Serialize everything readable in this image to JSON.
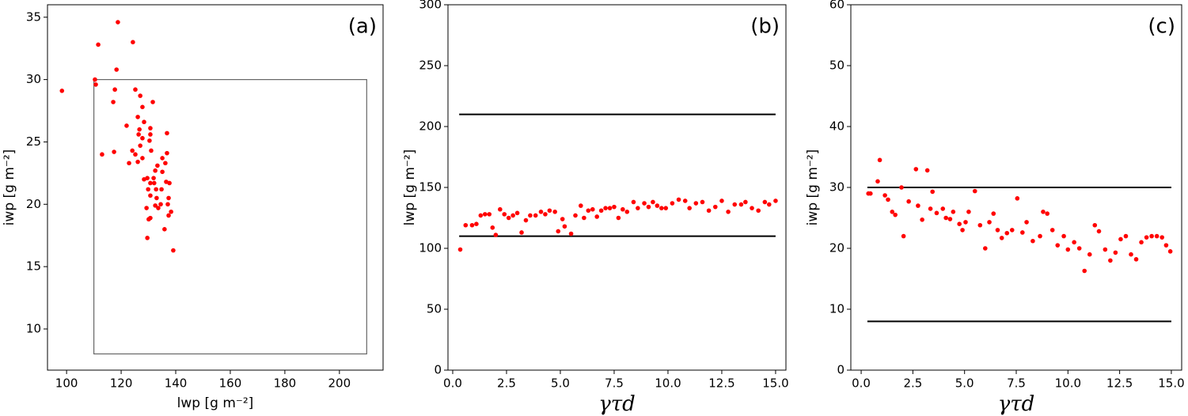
{
  "chart_data": [
    {
      "type": "scatter",
      "panel_label": "(a)",
      "xlabel": "lwp [g m⁻²]",
      "ylabel": "iwp [g m⁻²]",
      "xlim": [
        93,
        216
      ],
      "ylim": [
        6.7,
        36
      ],
      "xticks": [
        100,
        120,
        140,
        160,
        180,
        200
      ],
      "yticks": [
        10,
        15,
        20,
        25,
        30,
        35
      ],
      "color": "red",
      "x": [
        98.3,
        110.4,
        110.7,
        111.6,
        118.8,
        124.3,
        118.3,
        117.7,
        117.1,
        117.4,
        113.0,
        122.0,
        125.2,
        127.0,
        131.6,
        127.8,
        126.1,
        128.4,
        130.7,
        126.7,
        126.4,
        127.8,
        130.7,
        130.4,
        127.0,
        124.1,
        125.2,
        122.9,
        126.1,
        127.8,
        131.0,
        136.8,
        136.8,
        135.1,
        136.2,
        133.3,
        132.5,
        131.9,
        129.6,
        128.4,
        130.7,
        132.1,
        135.1,
        136.5,
        137.7,
        129.9,
        132.8,
        134.8,
        130.7,
        133.0,
        137.4,
        137.1,
        134.5,
        132.5,
        129.3,
        133.6,
        138.3,
        137.4,
        130.7,
        130.1,
        135.9,
        129.6,
        139.1
      ],
      "values": [
        29.1,
        30.0,
        29.6,
        32.8,
        34.6,
        33.0,
        30.8,
        29.2,
        28.2,
        24.2,
        24.0,
        26.3,
        29.2,
        28.7,
        28.2,
        27.8,
        27.0,
        26.6,
        26.1,
        26.0,
        25.6,
        25.3,
        25.6,
        25.1,
        24.7,
        24.3,
        24.0,
        23.3,
        23.4,
        23.7,
        24.3,
        25.7,
        24.1,
        23.7,
        23.3,
        23.1,
        22.7,
        22.1,
        22.1,
        22.0,
        21.7,
        21.7,
        22.6,
        21.8,
        21.7,
        21.2,
        21.2,
        21.2,
        20.7,
        20.5,
        20.5,
        20.0,
        20.0,
        19.9,
        19.7,
        19.7,
        19.4,
        19.1,
        18.9,
        18.8,
        18.0,
        17.3,
        16.3
      ],
      "box": {
        "x": [
          110,
          210
        ],
        "y": [
          8,
          30
        ],
        "color": "#666666"
      }
    },
    {
      "type": "scatter",
      "panel_label": "(b)",
      "xlabel": "γτd",
      "ylabel": "lwp [g m⁻²]",
      "xlim": [
        -0.22,
        15.48
      ],
      "ylim": [
        0,
        300
      ],
      "xticks": [
        {
          "value": 0,
          "label": "0.0"
        },
        {
          "value": 2.5,
          "label": "2.5"
        },
        {
          "value": 5,
          "label": "5.0"
        },
        {
          "value": 7.5,
          "label": "7.5"
        },
        {
          "value": 10,
          "label": "10.0"
        },
        {
          "value": 12.5,
          "label": "12.5"
        },
        {
          "value": 15,
          "label": "15.0"
        }
      ],
      "yticks": [
        0,
        50,
        100,
        150,
        200,
        250,
        300
      ],
      "color": "red",
      "x": [
        0.35,
        0.6,
        0.9,
        1.1,
        1.3,
        1.5,
        1.7,
        1.85,
        2.0,
        2.2,
        2.4,
        2.6,
        2.8,
        3.0,
        3.2,
        3.4,
        3.6,
        3.85,
        4.1,
        4.3,
        4.5,
        4.75,
        4.9,
        5.1,
        5.2,
        5.5,
        5.7,
        5.95,
        6.1,
        6.3,
        6.5,
        6.7,
        6.9,
        7.1,
        7.3,
        7.5,
        7.7,
        7.9,
        8.1,
        8.4,
        8.6,
        8.9,
        9.1,
        9.3,
        9.5,
        9.7,
        9.9,
        10.2,
        10.5,
        10.8,
        11.0,
        11.3,
        11.6,
        11.9,
        12.2,
        12.5,
        12.8,
        13.1,
        13.4,
        13.6,
        13.9,
        14.2,
        14.5,
        14.7,
        15.0
      ],
      "values": [
        99,
        119,
        119,
        120,
        127,
        128,
        128,
        117,
        111,
        132,
        128,
        125,
        127,
        129,
        113,
        123,
        127,
        127,
        130,
        128,
        131,
        130,
        114,
        124,
        118,
        112,
        127,
        135,
        125,
        131,
        132,
        126,
        131,
        133,
        133,
        134,
        125,
        132,
        130,
        138,
        133,
        137,
        134,
        138,
        135,
        133,
        133,
        137,
        140,
        139,
        133,
        137,
        138,
        131,
        134,
        139,
        130,
        136,
        136,
        138,
        133,
        131,
        138,
        136,
        139
      ],
      "hlines": {
        "values": [
          110,
          210
        ],
        "x": [
          0.3,
          15
        ],
        "color": "black"
      }
    },
    {
      "type": "scatter",
      "panel_label": "(c)",
      "xlabel": "γτd",
      "ylabel": "iwp [g m⁻²]",
      "xlim": [
        -0.5,
        15.5
      ],
      "ylim": [
        0,
        60
      ],
      "xticks": [
        {
          "value": 0,
          "label": "0.0"
        },
        {
          "value": 2.5,
          "label": "2.5"
        },
        {
          "value": 5,
          "label": "5.0"
        },
        {
          "value": 7.5,
          "label": "7.5"
        },
        {
          "value": 10,
          "label": "10.0"
        },
        {
          "value": 12.5,
          "label": "12.5"
        },
        {
          "value": 15,
          "label": "15.0"
        }
      ],
      "yticks": [
        0,
        10,
        20,
        30,
        40,
        50,
        60
      ],
      "color": "red",
      "x": [
        0.35,
        0.45,
        0.8,
        0.9,
        1.15,
        1.3,
        1.5,
        1.65,
        1.95,
        2.05,
        2.3,
        2.65,
        2.75,
        2.95,
        3.2,
        3.35,
        3.45,
        3.65,
        3.95,
        4.1,
        4.3,
        4.45,
        4.75,
        4.9,
        5.05,
        5.2,
        5.5,
        5.75,
        6.0,
        6.2,
        6.4,
        6.6,
        6.8,
        7.05,
        7.3,
        7.55,
        7.8,
        8.0,
        8.3,
        8.65,
        8.8,
        9.0,
        9.25,
        9.5,
        9.8,
        10.0,
        10.3,
        10.55,
        10.8,
        11.05,
        11.3,
        11.5,
        11.8,
        12.05,
        12.3,
        12.55,
        12.8,
        13.05,
        13.3,
        13.55,
        13.8,
        14.05,
        14.3,
        14.55,
        14.75,
        14.95
      ],
      "values": [
        29,
        29,
        31,
        34.5,
        28.7,
        28,
        26,
        25.5,
        30,
        22,
        27.7,
        33,
        27,
        24.7,
        32.8,
        26.5,
        29.3,
        25.8,
        26.5,
        25,
        24.8,
        26,
        24,
        23,
        24.3,
        26,
        29.4,
        23.8,
        20,
        24.3,
        25.7,
        23,
        21.7,
        22.5,
        23,
        28.2,
        22.6,
        24.3,
        21.2,
        22,
        26,
        25.7,
        23,
        20.5,
        22,
        19.8,
        21,
        20,
        16.3,
        19,
        23.8,
        22.8,
        19.8,
        18,
        19.3,
        21.5,
        22,
        19,
        18.2,
        21,
        21.8,
        22,
        22,
        21.8,
        20.5,
        19.5
      ],
      "hlines": {
        "values": [
          8,
          30
        ],
        "x": [
          0.3,
          15
        ],
        "color": "black"
      }
    }
  ]
}
